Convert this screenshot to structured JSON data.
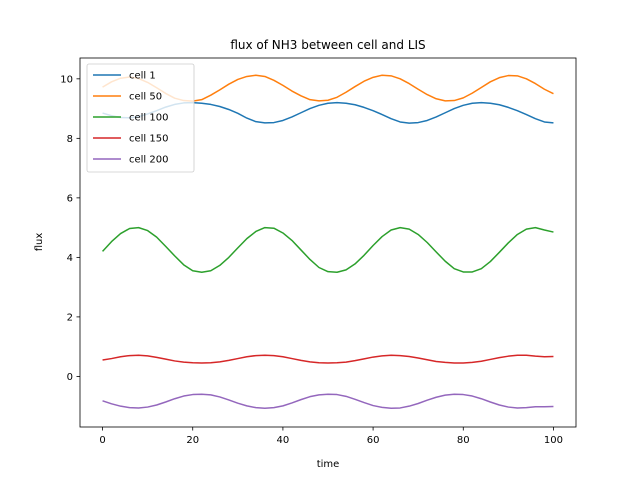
{
  "chart_data": {
    "type": "line",
    "title": "flux of NH3 between cell and LIS",
    "xlabel": "time",
    "ylabel": "flux",
    "xlim": [
      -5,
      105
    ],
    "ylim": [
      -1.7,
      10.7
    ],
    "xticks": [
      0,
      20,
      40,
      60,
      80,
      100
    ],
    "yticks": [
      0,
      2,
      4,
      6,
      8,
      10
    ],
    "grid": false,
    "legend_position": "top-left",
    "x": [
      0,
      2,
      4,
      6,
      8,
      10,
      12,
      14,
      16,
      18,
      20,
      22,
      24,
      26,
      28,
      30,
      32,
      34,
      36,
      38,
      40,
      42,
      44,
      46,
      48,
      50,
      52,
      54,
      56,
      58,
      60,
      62,
      64,
      66,
      68,
      70,
      72,
      74,
      76,
      78,
      80,
      82,
      84,
      86,
      88,
      90,
      92,
      94,
      96,
      98,
      100
    ],
    "series": [
      {
        "name": "cell 1",
        "color": "#1f77b4",
        "values": [
          8.85,
          8.76,
          8.7,
          8.69,
          8.73,
          8.82,
          8.93,
          9.05,
          9.14,
          9.19,
          9.2,
          9.18,
          9.14,
          9.07,
          8.97,
          8.84,
          8.68,
          8.56,
          8.52,
          8.53,
          8.6,
          8.72,
          8.86,
          9.0,
          9.11,
          9.18,
          9.2,
          9.18,
          9.13,
          9.04,
          8.93,
          8.8,
          8.66,
          8.55,
          8.51,
          8.53,
          8.6,
          8.72,
          8.86,
          9.0,
          9.11,
          9.18,
          9.2,
          9.18,
          9.13,
          9.04,
          8.93,
          8.8,
          8.66,
          8.55,
          8.52
        ]
      },
      {
        "name": "cell 50",
        "color": "#ff7f0e",
        "values": [
          9.72,
          9.9,
          10.02,
          10.06,
          10.01,
          9.88,
          9.7,
          9.51,
          9.35,
          9.27,
          9.25,
          9.3,
          9.45,
          9.63,
          9.82,
          9.98,
          10.08,
          10.12,
          10.08,
          9.95,
          9.78,
          9.59,
          9.43,
          9.3,
          9.26,
          9.28,
          9.38,
          9.55,
          9.74,
          9.92,
          10.05,
          10.12,
          10.1,
          10.0,
          9.84,
          9.65,
          9.47,
          9.33,
          9.26,
          9.27,
          9.36,
          9.52,
          9.71,
          9.9,
          10.04,
          10.11,
          10.1,
          10.0,
          9.84,
          9.65,
          9.5
        ]
      },
      {
        "name": "cell 100",
        "color": "#2ca02c",
        "values": [
          4.2,
          4.53,
          4.8,
          4.97,
          5.0,
          4.9,
          4.68,
          4.37,
          4.05,
          3.75,
          3.55,
          3.5,
          3.55,
          3.73,
          4.0,
          4.32,
          4.63,
          4.87,
          5.0,
          4.98,
          4.82,
          4.57,
          4.25,
          3.93,
          3.66,
          3.52,
          3.5,
          3.58,
          3.78,
          4.07,
          4.4,
          4.7,
          4.92,
          5.0,
          4.95,
          4.77,
          4.5,
          4.18,
          3.87,
          3.62,
          3.51,
          3.51,
          3.62,
          3.86,
          4.17,
          4.49,
          4.77,
          4.95,
          5.0,
          4.92,
          4.85
        ]
      },
      {
        "name": "cell 150",
        "color": "#d62728",
        "values": [
          0.55,
          0.6,
          0.66,
          0.7,
          0.71,
          0.69,
          0.64,
          0.58,
          0.52,
          0.48,
          0.46,
          0.45,
          0.46,
          0.49,
          0.54,
          0.6,
          0.66,
          0.7,
          0.71,
          0.7,
          0.66,
          0.6,
          0.54,
          0.49,
          0.46,
          0.45,
          0.46,
          0.48,
          0.53,
          0.59,
          0.65,
          0.69,
          0.71,
          0.7,
          0.67,
          0.62,
          0.56,
          0.5,
          0.47,
          0.45,
          0.45,
          0.47,
          0.51,
          0.57,
          0.63,
          0.68,
          0.71,
          0.71,
          0.68,
          0.66,
          0.67
        ]
      },
      {
        "name": "cell 200",
        "color": "#9467bd",
        "values": [
          -0.82,
          -0.92,
          -1.0,
          -1.05,
          -1.06,
          -1.03,
          -0.96,
          -0.86,
          -0.75,
          -0.66,
          -0.61,
          -0.6,
          -0.62,
          -0.69,
          -0.79,
          -0.9,
          -0.99,
          -1.05,
          -1.07,
          -1.05,
          -0.99,
          -0.89,
          -0.78,
          -0.68,
          -0.62,
          -0.6,
          -0.61,
          -0.67,
          -0.77,
          -0.88,
          -0.98,
          -1.04,
          -1.07,
          -1.06,
          -1.0,
          -0.91,
          -0.8,
          -0.7,
          -0.63,
          -0.6,
          -0.61,
          -0.66,
          -0.75,
          -0.86,
          -0.96,
          -1.03,
          -1.06,
          -1.05,
          -1.02,
          -1.02,
          -1.01
        ]
      }
    ]
  }
}
